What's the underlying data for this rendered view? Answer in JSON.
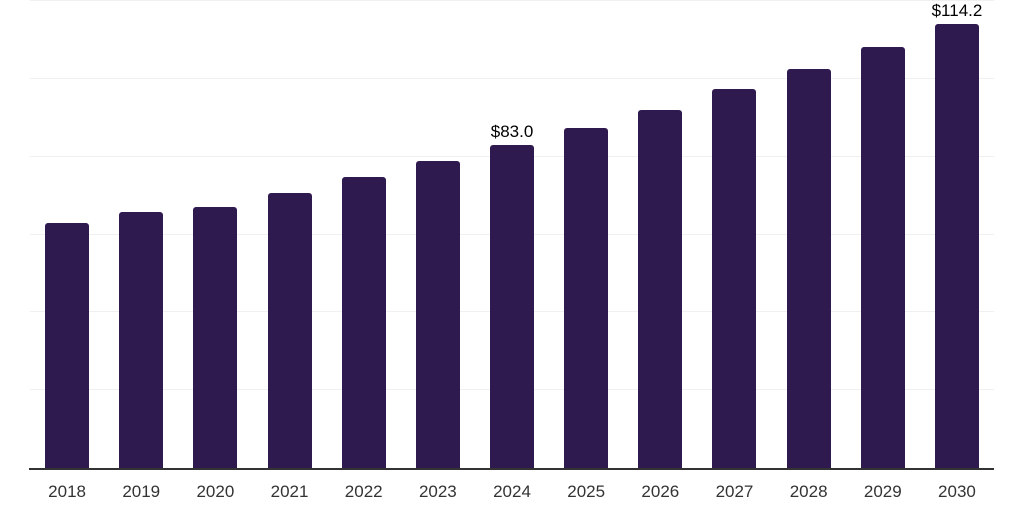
{
  "page": {
    "background_color": "#ffffff"
  },
  "chart_data": {
    "type": "bar",
    "title": "",
    "xlabel": "",
    "ylabel": "",
    "categories": [
      "2018",
      "2019",
      "2020",
      "2021",
      "2022",
      "2023",
      "2024",
      "2025",
      "2026",
      "2027",
      "2028",
      "2029",
      "2030"
    ],
    "values": [
      63.0,
      65.8,
      67.1,
      70.7,
      74.8,
      78.8,
      83.0,
      87.3,
      92.1,
      97.4,
      102.5,
      108.3,
      114.2
    ],
    "data_labels": {
      "2024": "$83.0",
      "2030": "$114.2"
    },
    "ylim": [
      0,
      120
    ],
    "gridline_interval": 20,
    "grid": true,
    "legend": "none",
    "y_axis_tick_labels_visible": false,
    "bar_color": "#2f1a50",
    "axis_color": "#333333",
    "gridline_color": "#f0f0f2",
    "data_label_color": "#000000",
    "tick_label_color": "#333333"
  }
}
